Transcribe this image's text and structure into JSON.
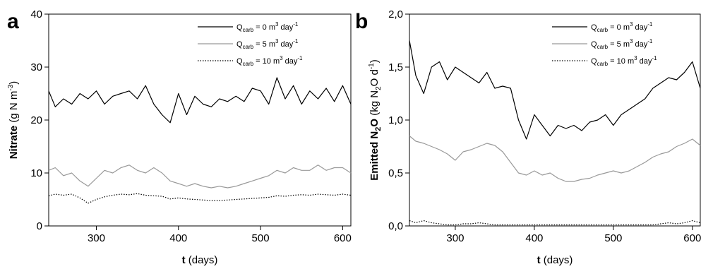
{
  "colors": {
    "q0": "#000000",
    "q5": "#999999",
    "q10": "#000000",
    "axis": "#000000",
    "background": "#ffffff"
  },
  "chart_data": [
    {
      "type": "line",
      "panel_label": "a",
      "xlabel": {
        "bold": "t",
        "normal": " (days)"
      },
      "ylabel": {
        "bold": "Nitrate",
        "normal": " (g N m",
        "sup": "-3",
        "tail": ")"
      },
      "xlim": [
        242,
        610
      ],
      "ylim": [
        0,
        40
      ],
      "xticks": [
        300,
        400,
        500,
        600
      ],
      "xtick_labels": [
        "300",
        "400",
        "500",
        "600"
      ],
      "yticks": [
        0,
        10,
        20,
        30,
        40
      ],
      "ytick_labels": [
        "0",
        "10",
        "20",
        "30",
        "40"
      ],
      "grid": false,
      "legend_position": "top-right",
      "x": [
        242,
        250,
        260,
        270,
        280,
        290,
        300,
        310,
        320,
        330,
        340,
        350,
        360,
        370,
        380,
        390,
        400,
        410,
        420,
        430,
        440,
        450,
        460,
        470,
        480,
        490,
        500,
        510,
        520,
        530,
        540,
        550,
        560,
        570,
        580,
        590,
        600,
        610
      ],
      "series": [
        {
          "name": "Q",
          "name_sub": "carb",
          "name_rest": " = 0 m",
          "name_sup": "3",
          "name_tail": " day",
          "name_sup2": "-1",
          "style": "solid",
          "color_key": "q0",
          "values": [
            25.5,
            22.5,
            24,
            23,
            25,
            24,
            25.5,
            23,
            24.5,
            25,
            25.5,
            24,
            26.5,
            23,
            21,
            19.5,
            25,
            21,
            24.5,
            23,
            22.5,
            24,
            23.5,
            24.5,
            23.5,
            26,
            25.5,
            23,
            28,
            24,
            26.5,
            23,
            25.5,
            24,
            26,
            23.5,
            26.5,
            23
          ]
        },
        {
          "name": "Q",
          "name_sub": "carb",
          "name_rest": " = 5 m",
          "name_sup": "3",
          "name_tail": " day",
          "name_sup2": "-1",
          "style": "solid",
          "color_key": "q5",
          "values": [
            10.5,
            11,
            9.5,
            10,
            8.5,
            7.5,
            9,
            10.5,
            10,
            11,
            11.5,
            10.5,
            10,
            11,
            10,
            8.5,
            8,
            7.5,
            8,
            7.5,
            7.2,
            7.5,
            7.2,
            7.5,
            8,
            8.5,
            9,
            9.5,
            10.5,
            10,
            11,
            10.5,
            10.5,
            11.5,
            10.5,
            11,
            11,
            10
          ]
        },
        {
          "name": "Q",
          "name_sub": "carb",
          "name_rest": " = 10 m",
          "name_sup": "3",
          "name_tail": " day",
          "name_sup2": "-1",
          "style": "dotted",
          "color_key": "q10",
          "values": [
            5.7,
            6,
            5.8,
            6,
            5.3,
            4.3,
            5,
            5.5,
            5.8,
            6,
            5.9,
            6.1,
            5.8,
            5.7,
            5.6,
            5.1,
            5.3,
            5.1,
            5,
            4.9,
            4.8,
            4.8,
            4.9,
            5,
            5.1,
            5.2,
            5.3,
            5.4,
            5.7,
            5.6,
            5.8,
            5.9,
            5.8,
            6,
            5.9,
            5.8,
            6,
            5.8
          ]
        }
      ]
    },
    {
      "type": "line",
      "panel_label": "b",
      "xlabel": {
        "bold": "t",
        "normal": " (days)"
      },
      "ylabel": {
        "bold": "Emitted N",
        "bold_sub": "2",
        "bold_tail": "O",
        "normal": " (kg N",
        "sub": "2",
        "normal2": "O d",
        "sup": "-1",
        "tail": ")"
      },
      "xlim": [
        242,
        610
      ],
      "ylim": [
        0,
        2
      ],
      "xticks": [
        300,
        400,
        500,
        600
      ],
      "xtick_labels": [
        "300",
        "400",
        "500",
        "600"
      ],
      "yticks": [
        0,
        0.5,
        1,
        1.5,
        2
      ],
      "ytick_labels": [
        "0,0",
        "0,5",
        "1,0",
        "1,5",
        "2,0"
      ],
      "grid": false,
      "legend_position": "top-right",
      "x": [
        242,
        250,
        260,
        270,
        280,
        290,
        300,
        310,
        320,
        330,
        340,
        350,
        360,
        370,
        380,
        390,
        400,
        410,
        420,
        430,
        440,
        450,
        460,
        470,
        480,
        490,
        500,
        510,
        520,
        530,
        540,
        550,
        560,
        570,
        580,
        590,
        600,
        610
      ],
      "series": [
        {
          "name": "Q",
          "name_sub": "carb",
          "name_rest": " = 0 m",
          "name_sup": "3",
          "name_tail": " day",
          "name_sup2": "-1",
          "style": "solid",
          "color_key": "q0",
          "values": [
            1.75,
            1.42,
            1.25,
            1.5,
            1.55,
            1.38,
            1.5,
            1.45,
            1.4,
            1.35,
            1.45,
            1.3,
            1.32,
            1.3,
            1.0,
            0.82,
            1.05,
            0.95,
            0.85,
            0.95,
            0.92,
            0.95,
            0.9,
            0.98,
            1.0,
            1.05,
            0.95,
            1.05,
            1.1,
            1.15,
            1.2,
            1.3,
            1.35,
            1.4,
            1.38,
            1.45,
            1.55,
            1.3
          ]
        },
        {
          "name": "Q",
          "name_sub": "carb",
          "name_rest": " = 5 m",
          "name_sup": "3",
          "name_tail": " day",
          "name_sup2": "-1",
          "style": "solid",
          "color_key": "q5",
          "values": [
            0.85,
            0.8,
            0.78,
            0.75,
            0.72,
            0.68,
            0.62,
            0.7,
            0.72,
            0.75,
            0.78,
            0.76,
            0.7,
            0.6,
            0.5,
            0.48,
            0.52,
            0.48,
            0.5,
            0.45,
            0.42,
            0.42,
            0.44,
            0.45,
            0.48,
            0.5,
            0.52,
            0.5,
            0.52,
            0.56,
            0.6,
            0.65,
            0.68,
            0.7,
            0.75,
            0.78,
            0.82,
            0.76
          ]
        },
        {
          "name": "Q",
          "name_sub": "carb",
          "name_rest": " = 10 m",
          "name_sup": "3",
          "name_tail": " day",
          "name_sup2": "-1",
          "style": "dotted",
          "color_key": "q10",
          "values": [
            0.05,
            0.03,
            0.05,
            0.03,
            0.02,
            0.01,
            0.01,
            0.02,
            0.02,
            0.03,
            0.02,
            0.01,
            0.01,
            0.01,
            0.01,
            0.01,
            0.01,
            0.01,
            0.01,
            0.01,
            0.01,
            0.01,
            0.01,
            0.01,
            0.01,
            0.01,
            0.01,
            0.01,
            0.01,
            0.01,
            0.01,
            0.01,
            0.02,
            0.03,
            0.02,
            0.03,
            0.05,
            0.03
          ]
        }
      ]
    }
  ]
}
